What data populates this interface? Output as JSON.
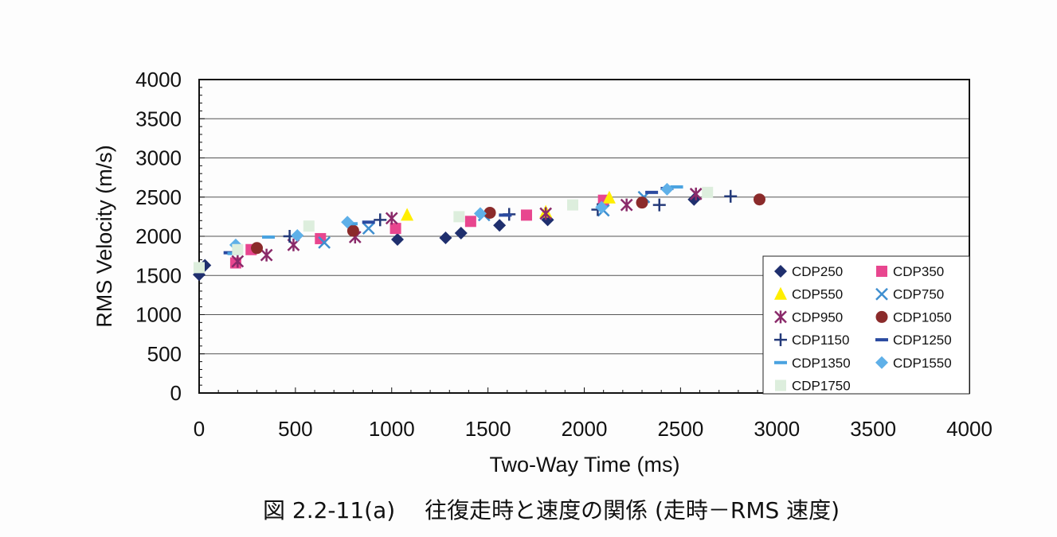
{
  "caption": "図 2.2-11(a)　 往復走時と速度の関係 (走時－RMS 速度)",
  "chart_data": {
    "type": "scatter",
    "xlabel": "Two-Way Time (ms)",
    "ylabel": "RMS Velocity (m/s)",
    "xlim": [
      0,
      4000
    ],
    "ylim": [
      0,
      4000
    ],
    "xticks": [
      "0",
      "500",
      "1000",
      "1500",
      "2000",
      "2500",
      "3000",
      "3500",
      "4000"
    ],
    "yticks": [
      "0",
      "500",
      "1000",
      "1500",
      "2000",
      "2500",
      "3000",
      "3500",
      "4000"
    ],
    "grid": "horizontal",
    "legend_position": "bottom-right",
    "series": [
      {
        "name": "CDP250",
        "marker": "diamond",
        "color": "#1f2f6e",
        "points": [
          [
            0,
            1510
          ],
          [
            30,
            1630
          ],
          [
            1030,
            1960
          ],
          [
            1280,
            1980
          ],
          [
            1360,
            2040
          ],
          [
            1560,
            2140
          ],
          [
            1810,
            2210
          ],
          [
            2570,
            2470
          ]
        ]
      },
      {
        "name": "CDP350",
        "marker": "square",
        "color": "#e8468f",
        "points": [
          [
            190,
            1660
          ],
          [
            270,
            1830
          ],
          [
            630,
            1970
          ],
          [
            1020,
            2100
          ],
          [
            1410,
            2190
          ],
          [
            1700,
            2270
          ],
          [
            2100,
            2460
          ]
        ]
      },
      {
        "name": "CDP550",
        "marker": "triangle",
        "color": "#ffee00",
        "points": [
          [
            1080,
            2270
          ],
          [
            1800,
            2310
          ],
          [
            2130,
            2490
          ]
        ]
      },
      {
        "name": "CDP750",
        "marker": "x",
        "color": "#3f8fd0",
        "points": [
          [
            650,
            1920
          ],
          [
            880,
            2100
          ],
          [
            1480,
            2270
          ],
          [
            2100,
            2330
          ],
          [
            2310,
            2500
          ]
        ]
      },
      {
        "name": "CDP950",
        "marker": "star",
        "color": "#8a2a6a",
        "points": [
          [
            200,
            1680
          ],
          [
            350,
            1760
          ],
          [
            490,
            1890
          ],
          [
            810,
            1990
          ],
          [
            1000,
            2230
          ],
          [
            1800,
            2290
          ],
          [
            2220,
            2400
          ],
          [
            2580,
            2540
          ]
        ]
      },
      {
        "name": "CDP1050",
        "marker": "circle",
        "color": "#8b2b2b",
        "points": [
          [
            300,
            1850
          ],
          [
            800,
            2070
          ],
          [
            1510,
            2300
          ],
          [
            2300,
            2430
          ],
          [
            2910,
            2470
          ]
        ]
      },
      {
        "name": "CDP1150",
        "marker": "plus",
        "color": "#243a7a",
        "points": [
          [
            470,
            2000
          ],
          [
            940,
            2210
          ],
          [
            1610,
            2280
          ],
          [
            2070,
            2340
          ],
          [
            2390,
            2400
          ],
          [
            2760,
            2510
          ]
        ]
      },
      {
        "name": "CDP1250",
        "marker": "dash",
        "color": "#2a4aa0",
        "points": [
          [
            160,
            1790
          ],
          [
            880,
            2180
          ],
          [
            1590,
            2270
          ],
          [
            2350,
            2560
          ],
          [
            2430,
            2610
          ]
        ]
      },
      {
        "name": "CDP1350",
        "marker": "dash",
        "color": "#4aa3e0",
        "points": [
          [
            180,
            1780
          ],
          [
            360,
            1990
          ],
          [
            790,
            2160
          ],
          [
            2480,
            2630
          ]
        ]
      },
      {
        "name": "CDP1550",
        "marker": "diamond",
        "color": "#5fb0e8",
        "points": [
          [
            190,
            1890
          ],
          [
            510,
            2010
          ],
          [
            770,
            2180
          ],
          [
            1460,
            2290
          ],
          [
            2090,
            2370
          ],
          [
            2430,
            2600
          ]
        ]
      },
      {
        "name": "CDP1750",
        "marker": "square",
        "color": "#ddeedd",
        "points": [
          [
            0,
            1600
          ],
          [
            200,
            1830
          ],
          [
            570,
            2130
          ],
          [
            1350,
            2250
          ],
          [
            1940,
            2400
          ],
          [
            2640,
            2560
          ]
        ]
      }
    ]
  }
}
